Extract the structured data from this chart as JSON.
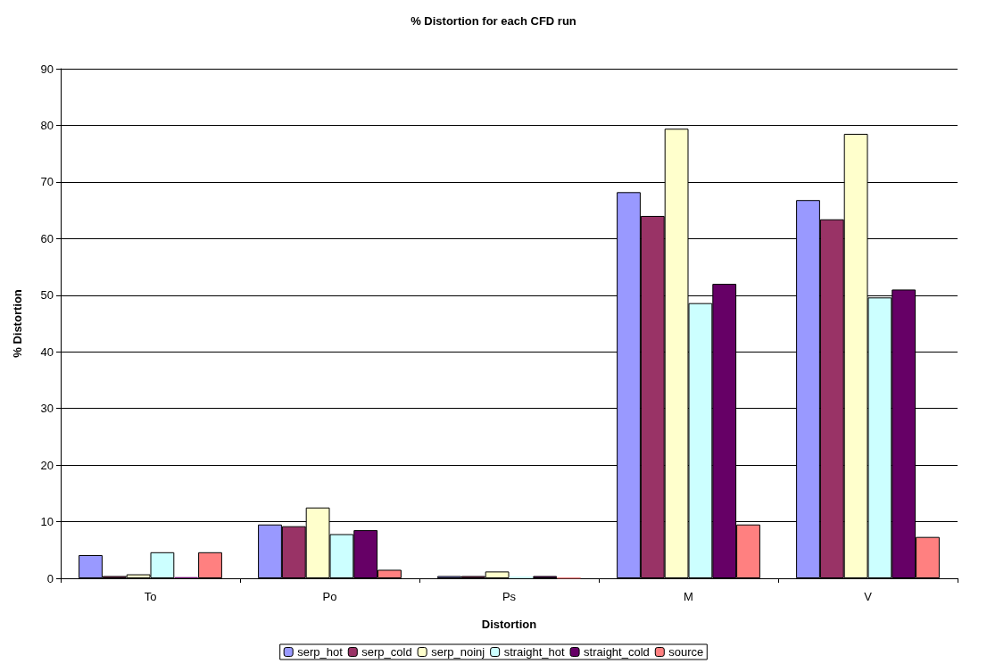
{
  "chart_data": {
    "type": "bar",
    "title": "% Distortion for each CFD run",
    "xlabel": "Distortion",
    "ylabel": "% Distortion",
    "categories": [
      "To",
      "Po",
      "Ps",
      "M",
      "V"
    ],
    "series": [
      {
        "name": "serp_hot",
        "color": "#9999ff",
        "values": [
          4.1,
          9.5,
          0.4,
          68.2,
          66.8
        ]
      },
      {
        "name": "serp_cold",
        "color": "#993366",
        "values": [
          0.4,
          9.2,
          0.4,
          64.0,
          63.4
        ]
      },
      {
        "name": "serp_noinj",
        "color": "#ffffcc",
        "values": [
          0.7,
          12.5,
          1.2,
          79.4,
          78.5
        ]
      },
      {
        "name": "straight_hot",
        "color": "#ccffff",
        "values": [
          4.6,
          7.8,
          0.3,
          48.6,
          49.6
        ]
      },
      {
        "name": "straight_cold",
        "color": "#660066",
        "values": [
          0.2,
          8.5,
          0.4,
          52.0,
          51.0
        ]
      },
      {
        "name": "source",
        "color": "#ff8080",
        "values": [
          4.6,
          1.5,
          0.1,
          9.5,
          7.3
        ]
      }
    ],
    "ylim": [
      0,
      90
    ],
    "yticks": [
      0,
      10,
      20,
      30,
      40,
      50,
      60,
      70,
      80,
      90
    ],
    "grid": "y",
    "legend": "bottom"
  }
}
